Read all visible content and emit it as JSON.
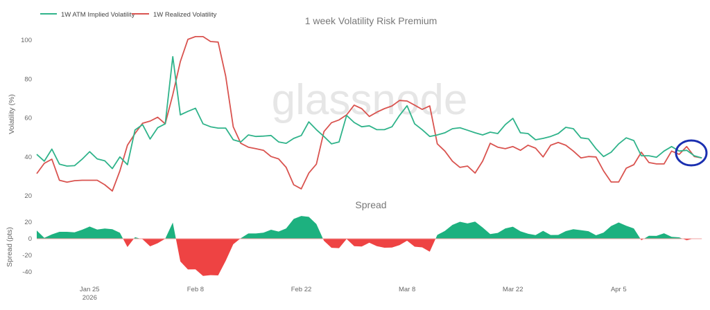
{
  "chart_data": [
    {
      "type": "line",
      "title": "1 week Volatility Risk Premium",
      "xlabel": "",
      "ylabel": "Volatility (%)",
      "ylim": [
        20,
        104
      ],
      "yticks": [
        20,
        40,
        60,
        80,
        100
      ],
      "legend_position": "top-left",
      "grid": false,
      "x": [
        "2026-01-18",
        "2026-01-19",
        "2026-01-20",
        "2026-01-21",
        "2026-01-22",
        "2026-01-23",
        "2026-01-24",
        "2026-01-25",
        "2026-01-26",
        "2026-01-27",
        "2026-01-28",
        "2026-01-29",
        "2026-01-30",
        "2026-01-31",
        "2026-02-01",
        "2026-02-02",
        "2026-02-03",
        "2026-02-04",
        "2026-02-05",
        "2026-02-06",
        "2026-02-07",
        "2026-02-08",
        "2026-02-09",
        "2026-02-10",
        "2026-02-11",
        "2026-02-12",
        "2026-02-13",
        "2026-02-14",
        "2026-02-15",
        "2026-02-16",
        "2026-02-17",
        "2026-02-18",
        "2026-02-19",
        "2026-02-20",
        "2026-02-21",
        "2026-02-22",
        "2026-02-23",
        "2026-02-24",
        "2026-02-25",
        "2026-02-26",
        "2026-02-27",
        "2026-02-28",
        "2026-03-01",
        "2026-03-02",
        "2026-03-03",
        "2026-03-04",
        "2026-03-05",
        "2026-03-06",
        "2026-03-07",
        "2026-03-08",
        "2026-03-09",
        "2026-03-10",
        "2026-03-11",
        "2026-03-12",
        "2026-03-13",
        "2026-03-14",
        "2026-03-15",
        "2026-03-16",
        "2026-03-17",
        "2026-03-18",
        "2026-03-19",
        "2026-03-20",
        "2026-03-21",
        "2026-03-22",
        "2026-03-23",
        "2026-03-24",
        "2026-03-25",
        "2026-03-26",
        "2026-03-27",
        "2026-03-28",
        "2026-03-29",
        "2026-03-30",
        "2026-03-31",
        "2026-04-01",
        "2026-04-02",
        "2026-04-03",
        "2026-04-04",
        "2026-04-05",
        "2026-04-06",
        "2026-04-07",
        "2026-04-08",
        "2026-04-09",
        "2026-04-10",
        "2026-04-11",
        "2026-04-12",
        "2026-04-13",
        "2026-04-14",
        "2026-04-15",
        "2026-04-16"
      ],
      "xticks": [
        {
          "date": "2026-01-25",
          "label": "Jan 25",
          "sublabel": "2026"
        },
        {
          "date": "2026-02-08",
          "label": "Feb 8"
        },
        {
          "date": "2026-02-22",
          "label": "Feb 22"
        },
        {
          "date": "2026-03-08",
          "label": "Mar 8"
        },
        {
          "date": "2026-03-22",
          "label": "Mar 22"
        },
        {
          "date": "2026-04-05",
          "label": "Apr 5"
        }
      ],
      "series": [
        {
          "name": "1W ATM Implied Volatility",
          "color": "#2fb38a",
          "values": [
            41.3,
            37.8,
            44,
            36.3,
            35.3,
            35.5,
            38.8,
            42.7,
            39,
            38,
            34,
            40,
            36,
            53.8,
            56.6,
            49.2,
            55,
            57,
            91.5,
            61.6,
            63.4,
            65,
            57,
            55.5,
            54.8,
            54.8,
            48.8,
            47.7,
            51.3,
            50.5,
            50.7,
            51,
            47.7,
            47,
            49.5,
            51,
            58,
            54,
            50.5,
            46.7,
            47.7,
            61.3,
            57.7,
            55.5,
            56,
            54,
            54,
            55.5,
            61.3,
            66.3,
            57,
            54,
            50.5,
            51.3,
            52.4,
            54.5,
            55,
            53.7,
            52.4,
            51.3,
            52.7,
            52,
            56.6,
            59.8,
            52.4,
            52,
            48.8,
            49.5,
            50.5,
            52,
            55.2,
            54.5,
            49.8,
            49.3,
            44.2,
            40.2,
            42.4,
            46.7,
            49.8,
            48.4,
            40.6,
            40.6,
            39.8,
            43,
            45.3,
            43,
            43.4,
            40.6,
            39.5
          ]
        },
        {
          "name": "1W Realized Volatility",
          "color": "#d9534f",
          "values": [
            31.4,
            36.7,
            38.8,
            28,
            27,
            27.8,
            28,
            28,
            28,
            25.7,
            22.5,
            32.8,
            46,
            52,
            57.3,
            58.4,
            60.4,
            57,
            72,
            89,
            100.4,
            101.8,
            101.8,
            99.3,
            99,
            81.5,
            55.5,
            47,
            45,
            44.2,
            43.4,
            40.2,
            39,
            34.6,
            25.7,
            23.6,
            31.7,
            36.3,
            53,
            57.6,
            59,
            61.6,
            66.6,
            64.8,
            60.8,
            63,
            64.8,
            66.2,
            69,
            68.7,
            66.6,
            64.4,
            66.2,
            46.7,
            43,
            37.8,
            34.6,
            35.3,
            31.7,
            37.8,
            47,
            45,
            44.2,
            45.3,
            43.4,
            46,
            44.5,
            40,
            46,
            47.4,
            46,
            43,
            39.5,
            40.2,
            40,
            32.8,
            27.1,
            27.1,
            34.2,
            36,
            42.4,
            37.1,
            36.4,
            36.4,
            43,
            41.3,
            45.3,
            40.2,
            39.5
          ]
        }
      ],
      "annotation": {
        "shape": "ellipse",
        "color": "#1a2fb0",
        "around_dates": [
          "2026-04-13",
          "2026-04-16"
        ]
      },
      "watermark": "glassnode"
    },
    {
      "type": "area",
      "title": "Spread",
      "ylabel": "Spread (pts)",
      "ylim": [
        -45,
        25
      ],
      "yticks": [
        20,
        0,
        -20,
        -40
      ],
      "derived_from": "1W ATM Implied Volatility minus 1W Realized Volatility",
      "positive_color": "#1db17f",
      "negative_color": "#ee4343"
    }
  ]
}
